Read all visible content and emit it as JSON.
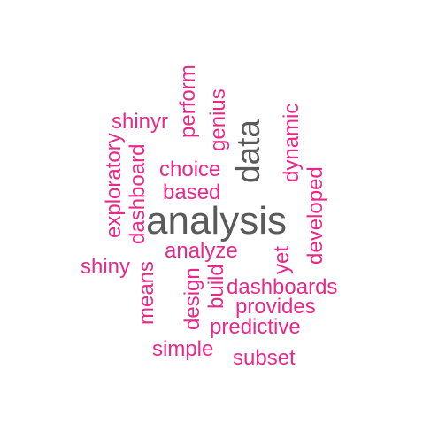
{
  "colors": {
    "primary": "#5a5a5a",
    "secondary": "#e7298a",
    "background": "#ffffff"
  },
  "words": [
    {
      "text": "analysis",
      "weight": 3,
      "vertical": false
    },
    {
      "text": "data",
      "weight": 2,
      "vertical": true
    },
    {
      "text": "perform",
      "weight": 1,
      "vertical": true
    },
    {
      "text": "shinyr",
      "weight": 1,
      "vertical": false
    },
    {
      "text": "genius",
      "weight": 1,
      "vertical": true
    },
    {
      "text": "dynamic",
      "weight": 1,
      "vertical": true
    },
    {
      "text": "exploratory",
      "weight": 1,
      "vertical": true
    },
    {
      "text": "dashboard",
      "weight": 1,
      "vertical": true
    },
    {
      "text": "choice",
      "weight": 1,
      "vertical": false
    },
    {
      "text": "based",
      "weight": 1,
      "vertical": false
    },
    {
      "text": "developed",
      "weight": 1,
      "vertical": true
    },
    {
      "text": "analyze",
      "weight": 1,
      "vertical": false
    },
    {
      "text": "shiny",
      "weight": 1,
      "vertical": false
    },
    {
      "text": "yet",
      "weight": 1,
      "vertical": true
    },
    {
      "text": "means",
      "weight": 1,
      "vertical": true
    },
    {
      "text": "design",
      "weight": 1,
      "vertical": true
    },
    {
      "text": "build",
      "weight": 1,
      "vertical": true
    },
    {
      "text": "dashboards",
      "weight": 1,
      "vertical": false
    },
    {
      "text": "provides",
      "weight": 1,
      "vertical": false
    },
    {
      "text": "predictive",
      "weight": 1,
      "vertical": false
    },
    {
      "text": "simple",
      "weight": 1,
      "vertical": false
    },
    {
      "text": "subset",
      "weight": 1,
      "vertical": false
    }
  ]
}
